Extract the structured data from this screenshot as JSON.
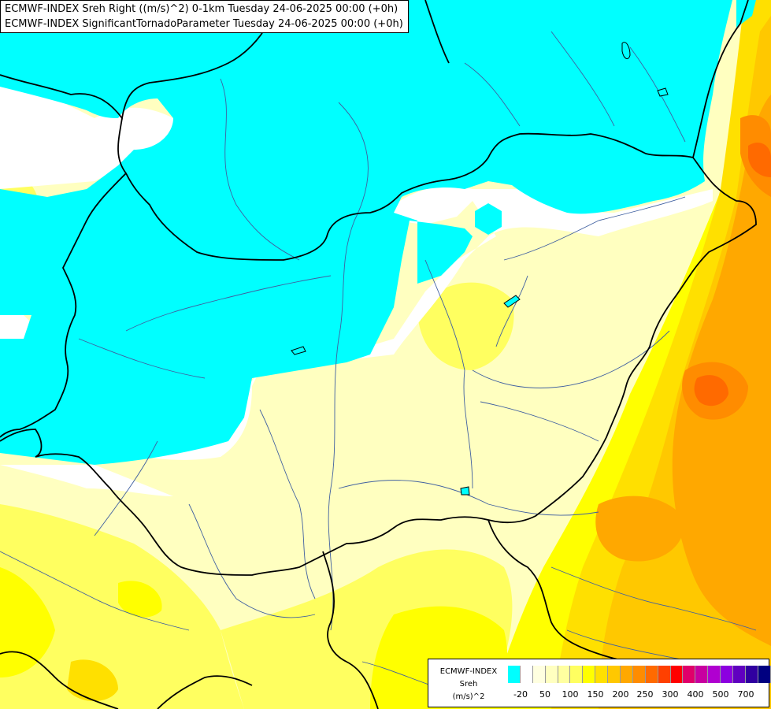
{
  "titles": [
    "ECMWF-INDEX Sreh Right ((m/s)^2) 0-1km Tuesday 24-06-2025 00:00 (+0h)",
    "ECMWF-INDEX SignificantTornadoParameter Tuesday 24-06-2025 00:00 (+0h)"
  ],
  "legend": {
    "model": "ECMWF-INDEX",
    "parameter": "Sreh",
    "unit": "(m/s)^2",
    "tick_labels": [
      "-20",
      "50",
      "100",
      "150",
      "200",
      "250",
      "300",
      "400",
      "500",
      "700"
    ],
    "colors": [
      "#00ffff",
      "#ffffff",
      "#ffffe0",
      "#ffffc0",
      "#ffffa0",
      "#ffff60",
      "#ffff00",
      "#ffe000",
      "#ffc800",
      "#ffa800",
      "#ff8c00",
      "#ff6a00",
      "#ff4000",
      "#ff0000",
      "#e0006a",
      "#c800a0",
      "#b000d0",
      "#8c00e0",
      "#6000c0",
      "#3000a0",
      "#000080"
    ]
  },
  "colors": {
    "cyan": "#00ffff",
    "white": "#ffffff",
    "pale_yellow": "#ffffc0",
    "light_yellow": "#ffffa0",
    "yellow": "#ffff60",
    "gold": "#ffe000",
    "orange": "#ffc800",
    "dark_orange": "#ffa800",
    "red_orange": "#ff6a00",
    "border": "#000000",
    "river": "#4060a0"
  }
}
